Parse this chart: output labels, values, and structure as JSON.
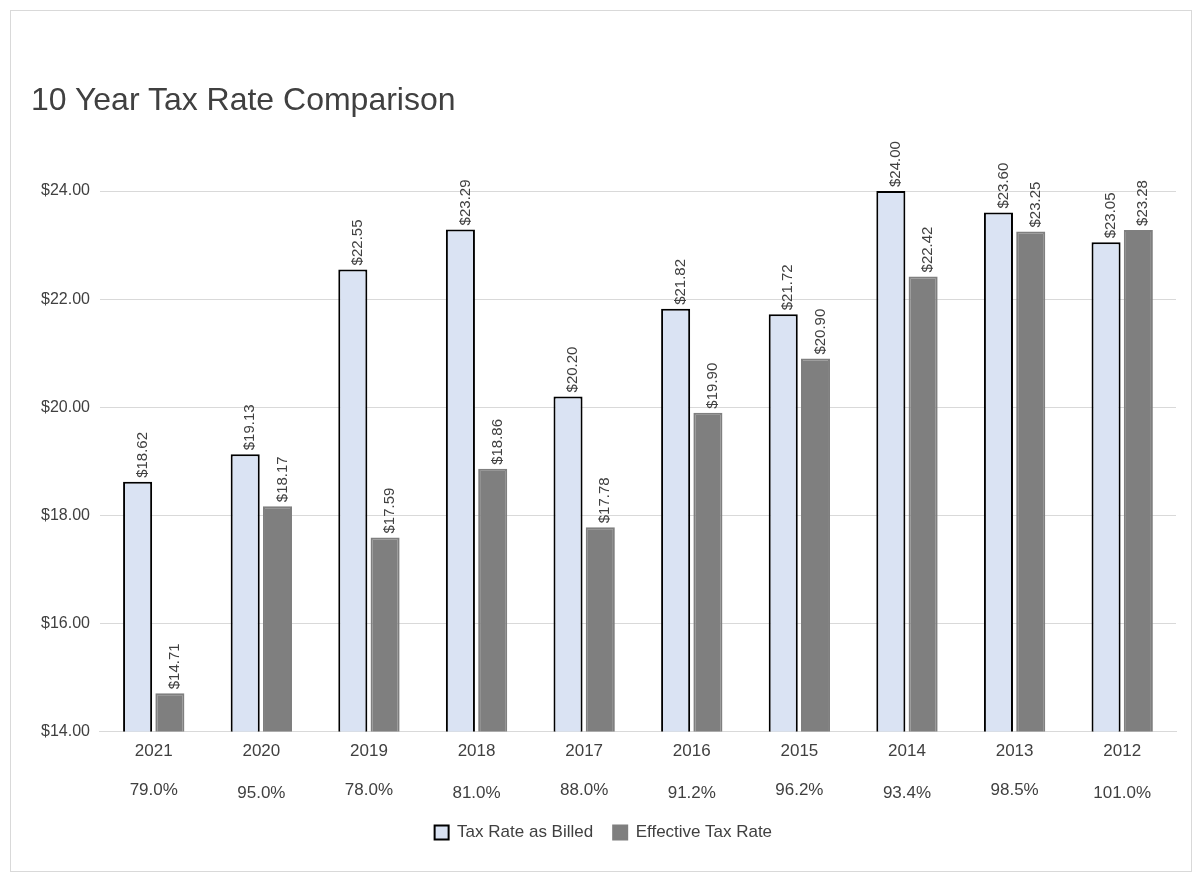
{
  "chart_data": {
    "type": "bar",
    "title": "10 Year Tax Rate Comparison",
    "categories": [
      "2021",
      "2020",
      "2019",
      "2018",
      "2017",
      "2016",
      "2015",
      "2014",
      "2013",
      "2012"
    ],
    "series": [
      {
        "name": "Tax Rate as Billed",
        "color": "#dae3f3",
        "values": [
          18.62,
          19.13,
          22.55,
          23.29,
          20.2,
          21.82,
          21.72,
          24.0,
          23.6,
          23.05
        ],
        "value_labels": [
          "$18.62",
          "$19.13",
          "$22.55",
          "$23.29",
          "$20.20",
          "$21.82",
          "$21.72",
          "$24.00",
          "$23.60",
          "$23.05"
        ]
      },
      {
        "name": "Effective Tax Rate",
        "color": "#7f7f7f",
        "values": [
          14.71,
          18.17,
          17.59,
          18.86,
          17.78,
          19.9,
          20.9,
          22.42,
          23.25,
          23.28
        ],
        "value_labels": [
          "$14.71",
          "$18.17",
          "$17.59",
          "$18.86",
          "$17.78",
          "$19.90",
          "$20.90",
          "$22.42",
          "$23.25",
          "$23.28"
        ]
      }
    ],
    "ylim": [
      14,
      24
    ],
    "yticks": [
      {
        "value": 14,
        "label": "$14.00"
      },
      {
        "value": 16,
        "label": "$16.00"
      },
      {
        "value": 18,
        "label": "$18.00"
      },
      {
        "value": 20,
        "label": "$20.00"
      },
      {
        "value": 22,
        "label": "$22.00"
      },
      {
        "value": 24,
        "label": "$24.00"
      }
    ],
    "annotations": [
      {
        "text": "79.0%",
        "x": "2021"
      },
      {
        "text": "95.0%",
        "x": "2020"
      },
      {
        "text": "78.0%",
        "x": "2019"
      },
      {
        "text": "81.0%",
        "x": "2018"
      },
      {
        "text": "88.0%",
        "x": "2017"
      },
      {
        "text": "91.2%",
        "x": "2016"
      },
      {
        "text": "96.2%",
        "x": "2015"
      },
      {
        "text": "93.4%",
        "x": "2014"
      },
      {
        "text": "98.5%",
        "x": "2013"
      },
      {
        "text": "101.0%",
        "x": "2012"
      }
    ],
    "grid": "y",
    "legend": "bottom"
  }
}
